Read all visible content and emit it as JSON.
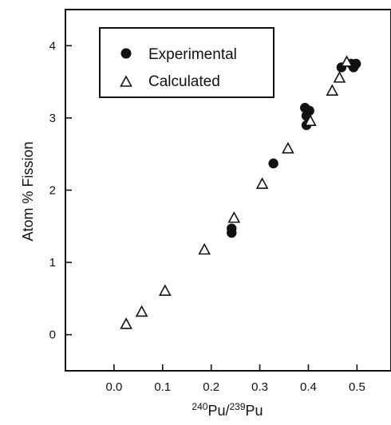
{
  "chart_data": {
    "type": "scatter",
    "title": "",
    "xlabel": {
      "iso1": "240",
      "el1": "Pu",
      "sep": "/",
      "iso2": "239",
      "el2": "Pu"
    },
    "ylabel": "Atom % Fission",
    "xlim": [
      -0.1,
      0.57
    ],
    "ylim": [
      -0.5,
      4.5
    ],
    "xticks": [
      0.0,
      0.1,
      0.2,
      0.3,
      0.4,
      0.5
    ],
    "xtick_labels": [
      "0.0",
      "0.1",
      "0.2",
      "0.3",
      "0.4",
      "0.5"
    ],
    "yticks": [
      0,
      1,
      2,
      3,
      4
    ],
    "ytick_labels": [
      "0",
      "1",
      "2",
      "3",
      "4"
    ],
    "grid": false,
    "legend_position": "top-left",
    "series": [
      {
        "name": "Experimental",
        "marker": "filled-circle",
        "color": "#111111",
        "points": [
          [
            0.242,
            1.47
          ],
          [
            0.242,
            1.41
          ],
          [
            0.328,
            2.37
          ],
          [
            0.393,
            3.14
          ],
          [
            0.396,
            3.03
          ],
          [
            0.396,
            2.9
          ],
          [
            0.402,
            3.1
          ],
          [
            0.468,
            3.7
          ],
          [
            0.488,
            3.75
          ],
          [
            0.493,
            3.7
          ],
          [
            0.498,
            3.75
          ]
        ]
      },
      {
        "name": "Calculated",
        "marker": "open-triangle",
        "color": "#111111",
        "points": [
          [
            0.025,
            0.14
          ],
          [
            0.057,
            0.31
          ],
          [
            0.105,
            0.6
          ],
          [
            0.186,
            1.17
          ],
          [
            0.247,
            1.61
          ],
          [
            0.305,
            2.08
          ],
          [
            0.358,
            2.57
          ],
          [
            0.404,
            2.95
          ],
          [
            0.449,
            3.37
          ],
          [
            0.464,
            3.55
          ],
          [
            0.479,
            3.77
          ]
        ]
      }
    ]
  }
}
